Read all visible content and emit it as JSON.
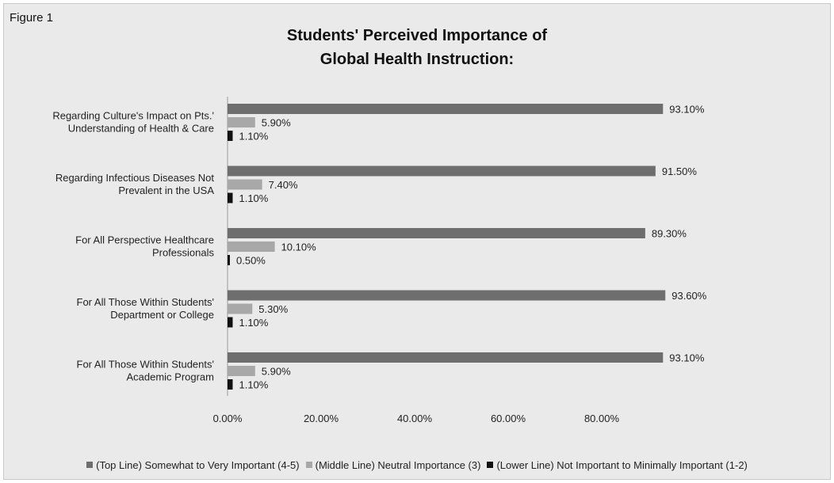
{
  "figure_label": "Figure 1",
  "chart_data": {
    "type": "bar",
    "orientation": "horizontal",
    "title": "Students' Perceived Importance of Global Health Instruction:",
    "title_lines": [
      "Students' Perceived Importance of",
      "Global Health Instruction:"
    ],
    "categories": [
      [
        "Regarding Culture's Impact on Pts.'",
        "Understanding of Health & Care"
      ],
      [
        "Regarding Infectious Diseases Not",
        "Prevalent in the USA"
      ],
      [
        "For All Perspective Healthcare",
        "Professionals"
      ],
      [
        "For All Those Within Students'",
        "Department or College"
      ],
      [
        "For All Those Within Students'",
        "Academic Program"
      ]
    ],
    "series": [
      {
        "name": "(Top Line) Somewhat to Very Important (4-5)",
        "values": [
          93.1,
          91.5,
          89.3,
          93.6,
          93.1
        ],
        "labels": [
          "93.10%",
          "91.50%",
          "89.30%",
          "93.60%",
          "93.10%"
        ],
        "color": "#6e6e6e"
      },
      {
        "name": "(Middle Line) Neutral Importance (3)",
        "values": [
          5.9,
          7.4,
          10.1,
          5.3,
          5.9
        ],
        "labels": [
          "5.90%",
          "7.40%",
          "10.10%",
          "5.30%",
          "5.90%"
        ],
        "color": "#a8a8a8"
      },
      {
        "name": "(Lower Line) Not Important to Minimally Important (1-2)",
        "values": [
          1.1,
          1.1,
          0.5,
          1.1,
          1.1
        ],
        "labels": [
          "1.10%",
          "1.10%",
          "0.50%",
          "1.10%",
          "1.10%"
        ],
        "color": "#111111"
      }
    ],
    "xticks": [
      "0.00%",
      "20.00%",
      "40.00%",
      "60.00%",
      "80.00%"
    ],
    "xlim": [
      0,
      100
    ],
    "grid": false,
    "legend_position": "bottom"
  }
}
